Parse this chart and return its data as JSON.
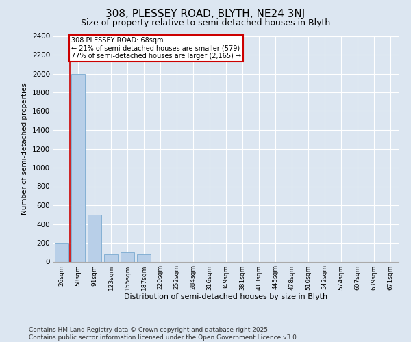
{
  "title": "308, PLESSEY ROAD, BLYTH, NE24 3NJ",
  "subtitle": "Size of property relative to semi-detached houses in Blyth",
  "xlabel": "Distribution of semi-detached houses by size in Blyth",
  "ylabel": "Number of semi-detached properties",
  "categories": [
    "26sqm",
    "58sqm",
    "91sqm",
    "123sqm",
    "155sqm",
    "187sqm",
    "220sqm",
    "252sqm",
    "284sqm",
    "316sqm",
    "349sqm",
    "381sqm",
    "413sqm",
    "445sqm",
    "478sqm",
    "510sqm",
    "542sqm",
    "574sqm",
    "607sqm",
    "639sqm",
    "671sqm"
  ],
  "values": [
    200,
    2000,
    500,
    75,
    100,
    75,
    0,
    0,
    0,
    0,
    0,
    0,
    0,
    0,
    0,
    0,
    0,
    0,
    0,
    0,
    0
  ],
  "bar_color": "#b8cfe8",
  "bar_edge_color": "#7aaad0",
  "red_line_index": 1,
  "annotation_text": "308 PLESSEY ROAD: 68sqm\n← 21% of semi-detached houses are smaller (579)\n77% of semi-detached houses are larger (2,165) →",
  "annotation_box_color": "#ffffff",
  "annotation_box_edge": "#cc0000",
  "red_line_color": "#cc0000",
  "ylim": [
    0,
    2400
  ],
  "yticks": [
    0,
    200,
    400,
    600,
    800,
    1000,
    1200,
    1400,
    1600,
    1800,
    2000,
    2200,
    2400
  ],
  "background_color": "#dce6f1",
  "plot_bg_color": "#dce6f1",
  "footer": "Contains HM Land Registry data © Crown copyright and database right 2025.\nContains public sector information licensed under the Open Government Licence v3.0.",
  "title_fontsize": 11,
  "subtitle_fontsize": 9,
  "annotation_fontsize": 7,
  "footer_fontsize": 6.5
}
